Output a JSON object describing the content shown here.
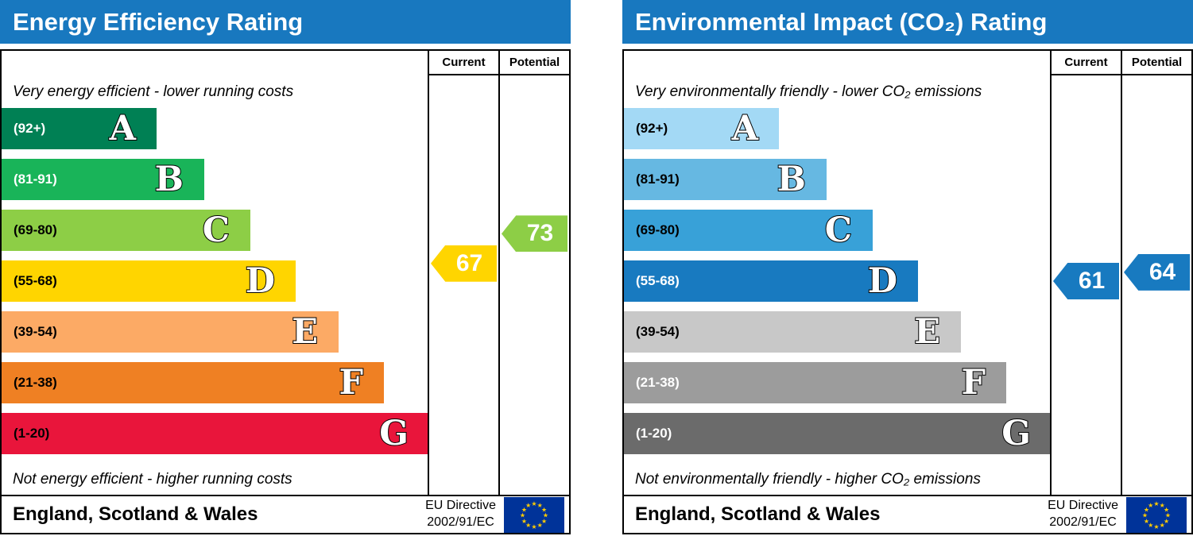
{
  "colors": {
    "header_bg": "#1878bf",
    "flag_bg": "#003399",
    "flag_stars": "#ffcc00"
  },
  "chart_data": [
    {
      "type": "bar",
      "title": "Energy Efficiency Rating",
      "top_caption": "Very energy efficient - lower running costs",
      "bottom_caption": "Not energy efficient - higher running costs",
      "columns": {
        "current": "Current",
        "potential": "Potential"
      },
      "bands": [
        {
          "letter": "A",
          "range_label": "(92+)",
          "min": 92,
          "max": 100,
          "color": "#008054",
          "label_color": "#ffffff"
        },
        {
          "letter": "B",
          "range_label": "(81-91)",
          "min": 81,
          "max": 91,
          "color": "#19b459",
          "label_color": "#ffffff"
        },
        {
          "letter": "C",
          "range_label": "(69-80)",
          "min": 69,
          "max": 80,
          "color": "#8dce46",
          "label_color": "#000000"
        },
        {
          "letter": "D",
          "range_label": "(55-68)",
          "min": 55,
          "max": 68,
          "color": "#ffd500",
          "label_color": "#000000"
        },
        {
          "letter": "E",
          "range_label": "(39-54)",
          "min": 39,
          "max": 54,
          "color": "#fcaa65",
          "label_color": "#000000"
        },
        {
          "letter": "F",
          "range_label": "(21-38)",
          "min": 21,
          "max": 38,
          "color": "#ef8023",
          "label_color": "#000000"
        },
        {
          "letter": "G",
          "range_label": "(1-20)",
          "min": 1,
          "max": 20,
          "color": "#e9153b",
          "label_color": "#000000"
        }
      ],
      "current": {
        "value": 67,
        "band": "D",
        "color": "#ffd500"
      },
      "potential": {
        "value": 73,
        "band": "C",
        "color": "#8dce46"
      },
      "footer": {
        "region": "England, Scotland & Wales",
        "directive_line1": "EU Directive",
        "directive_line2": "2002/91/EC"
      }
    },
    {
      "type": "bar",
      "title": "Environmental Impact (CO₂) Rating",
      "top_caption": "Very environmentally friendly - lower CO₂ emissions",
      "bottom_caption": "Not environmentally friendly - higher CO₂ emissions",
      "columns": {
        "current": "Current",
        "potential": "Potential"
      },
      "bands": [
        {
          "letter": "A",
          "range_label": "(92+)",
          "min": 92,
          "max": 100,
          "color": "#a3d9f5",
          "label_color": "#000000"
        },
        {
          "letter": "B",
          "range_label": "(81-91)",
          "min": 81,
          "max": 91,
          "color": "#66b8e2",
          "label_color": "#000000"
        },
        {
          "letter": "C",
          "range_label": "(69-80)",
          "min": 69,
          "max": 80,
          "color": "#38a1d8",
          "label_color": "#000000"
        },
        {
          "letter": "D",
          "range_label": "(55-68)",
          "min": 55,
          "max": 68,
          "color": "#187ac0",
          "label_color": "#ffffff"
        },
        {
          "letter": "E",
          "range_label": "(39-54)",
          "min": 39,
          "max": 54,
          "color": "#c8c8c8",
          "label_color": "#000000"
        },
        {
          "letter": "F",
          "range_label": "(21-38)",
          "min": 21,
          "max": 38,
          "color": "#9c9c9c",
          "label_color": "#ffffff"
        },
        {
          "letter": "G",
          "range_label": "(1-20)",
          "min": 1,
          "max": 20,
          "color": "#6b6b6b",
          "label_color": "#ffffff"
        }
      ],
      "current": {
        "value": 61,
        "band": "D",
        "color": "#187ac0"
      },
      "potential": {
        "value": 64,
        "band": "D",
        "color": "#187ac0"
      },
      "footer": {
        "region": "England, Scotland & Wales",
        "directive_line1": "EU Directive",
        "directive_line2": "2002/91/EC"
      }
    }
  ]
}
